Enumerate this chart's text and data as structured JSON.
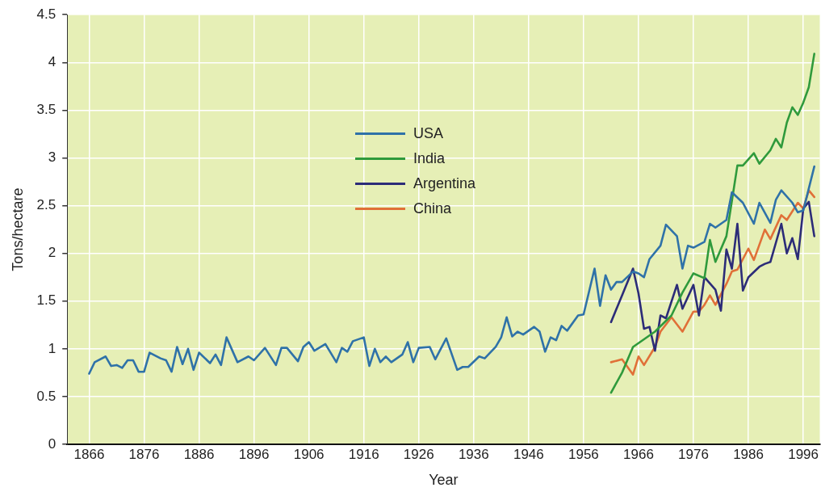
{
  "chart_data": {
    "type": "line",
    "xlabel": "Year",
    "ylabel": "Tons/hectare",
    "xlim": [
      1862,
      1999
    ],
    "xticks": [
      1866,
      1876,
      1886,
      1896,
      1906,
      1916,
      1926,
      1936,
      1946,
      1956,
      1966,
      1976,
      1986,
      1996
    ],
    "ylim": [
      0,
      4.5
    ],
    "yticks": [
      0,
      0.5,
      1,
      1.5,
      2,
      2.5,
      3,
      3.5,
      4,
      4.5
    ],
    "grid": true,
    "legend": "top",
    "marker": "none",
    "line_style": "solid",
    "series": [
      {
        "name": "USA",
        "color": "#2f72a8",
        "x": [
          1866,
          1867,
          1869,
          1870,
          1871,
          1872,
          1873,
          1874,
          1875,
          1876,
          1877,
          1879,
          1880,
          1881,
          1882,
          1883,
          1884,
          1885,
          1886,
          1888,
          1889,
          1890,
          1891,
          1893,
          1895,
          1896,
          1898,
          1900,
          1901,
          1902,
          1904,
          1905,
          1906,
          1907,
          1909,
          1911,
          1912,
          1913,
          1914,
          1916,
          1917,
          1918,
          1919,
          1920,
          1921,
          1923,
          1924,
          1925,
          1926,
          1928,
          1929,
          1931,
          1933,
          1934,
          1935,
          1937,
          1938,
          1940,
          1941,
          1942,
          1943,
          1944,
          1945,
          1947,
          1948,
          1949,
          1950,
          1951,
          1952,
          1953,
          1955,
          1956,
          1958,
          1959,
          1960,
          1961,
          1962,
          1963,
          1965,
          1966,
          1967,
          1968,
          1970,
          1971,
          1973,
          1974,
          1975,
          1976,
          1978,
          1979,
          1980,
          1982,
          1983,
          1985,
          1987,
          1988,
          1990,
          1991,
          1992,
          1994,
          1995,
          1996,
          1998
        ],
        "values": [
          0.74,
          0.86,
          0.92,
          0.82,
          0.83,
          0.8,
          0.88,
          0.88,
          0.76,
          0.76,
          0.96,
          0.9,
          0.88,
          0.76,
          1.02,
          0.84,
          1.0,
          0.78,
          0.96,
          0.85,
          0.94,
          0.83,
          1.12,
          0.86,
          0.92,
          0.88,
          1.01,
          0.83,
          1.01,
          1.01,
          0.87,
          1.02,
          1.07,
          0.98,
          1.05,
          0.86,
          1.01,
          0.97,
          1.08,
          1.12,
          0.82,
          1.0,
          0.86,
          0.92,
          0.86,
          0.94,
          1.07,
          0.86,
          1.01,
          1.02,
          0.89,
          1.11,
          0.78,
          0.81,
          0.81,
          0.92,
          0.9,
          1.02,
          1.12,
          1.33,
          1.13,
          1.18,
          1.15,
          1.23,
          1.18,
          0.97,
          1.12,
          1.09,
          1.24,
          1.19,
          1.35,
          1.36,
          1.84,
          1.45,
          1.77,
          1.62,
          1.7,
          1.7,
          1.81,
          1.79,
          1.75,
          1.94,
          2.08,
          2.3,
          2.18,
          1.84,
          2.08,
          2.06,
          2.12,
          2.31,
          2.27,
          2.35,
          2.64,
          2.53,
          2.31,
          2.53,
          2.32,
          2.56,
          2.66,
          2.53,
          2.43,
          2.45,
          2.91
        ]
      },
      {
        "name": "India",
        "color": "#2f9a3c",
        "x": [
          1961,
          1963,
          1965,
          1967,
          1969,
          1972,
          1974,
          1976,
          1978,
          1979,
          1980,
          1982,
          1984,
          1985,
          1987,
          1988,
          1990,
          1991,
          1992,
          1993,
          1994,
          1995,
          1996,
          1997,
          1998
        ],
        "values": [
          0.54,
          0.75,
          1.02,
          1.1,
          1.18,
          1.35,
          1.59,
          1.79,
          1.74,
          2.14,
          1.91,
          2.18,
          2.92,
          2.92,
          3.05,
          2.94,
          3.08,
          3.2,
          3.11,
          3.37,
          3.53,
          3.45,
          3.58,
          3.74,
          4.09
        ]
      },
      {
        "name": "Argentina",
        "color": "#2c2c78",
        "x": [
          1961,
          1963,
          1965,
          1966,
          1967,
          1968,
          1969,
          1970,
          1971,
          1973,
          1974,
          1976,
          1977,
          1978,
          1980,
          1981,
          1982,
          1983,
          1984,
          1985,
          1986,
          1988,
          1989,
          1990,
          1992,
          1993,
          1994,
          1995,
          1996,
          1997,
          1998
        ],
        "values": [
          1.28,
          1.56,
          1.84,
          1.58,
          1.21,
          1.23,
          0.98,
          1.35,
          1.32,
          1.67,
          1.42,
          1.67,
          1.35,
          1.75,
          1.62,
          1.4,
          2.04,
          1.84,
          2.31,
          1.61,
          1.75,
          1.86,
          1.89,
          1.91,
          2.31,
          2.0,
          2.16,
          1.94,
          2.47,
          2.54,
          2.18
        ]
      },
      {
        "name": "China",
        "color": "#e07038",
        "x": [
          1961,
          1963,
          1965,
          1966,
          1967,
          1969,
          1970,
          1972,
          1974,
          1976,
          1977,
          1978,
          1979,
          1980,
          1982,
          1983,
          1984,
          1986,
          1987,
          1989,
          1990,
          1992,
          1993,
          1995,
          1996,
          1997,
          1998
        ],
        "values": [
          0.86,
          0.89,
          0.73,
          0.92,
          0.83,
          1.02,
          1.18,
          1.33,
          1.18,
          1.39,
          1.39,
          1.46,
          1.56,
          1.46,
          1.68,
          1.81,
          1.83,
          2.05,
          1.93,
          2.25,
          2.15,
          2.4,
          2.35,
          2.53,
          2.47,
          2.66,
          2.59
        ]
      }
    ]
  }
}
